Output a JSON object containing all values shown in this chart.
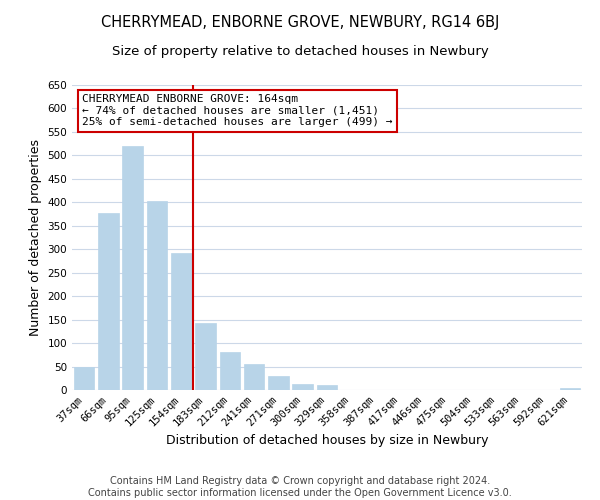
{
  "title": "CHERRYMEAD, ENBORNE GROVE, NEWBURY, RG14 6BJ",
  "subtitle": "Size of property relative to detached houses in Newbury",
  "xlabel": "Distribution of detached houses by size in Newbury",
  "ylabel": "Number of detached properties",
  "bar_labels": [
    "37sqm",
    "66sqm",
    "95sqm",
    "125sqm",
    "154sqm",
    "183sqm",
    "212sqm",
    "241sqm",
    "271sqm",
    "300sqm",
    "329sqm",
    "358sqm",
    "387sqm",
    "417sqm",
    "446sqm",
    "475sqm",
    "504sqm",
    "533sqm",
    "563sqm",
    "592sqm",
    "621sqm"
  ],
  "bar_values": [
    50,
    378,
    520,
    403,
    293,
    143,
    80,
    55,
    30,
    13,
    10,
    0,
    0,
    0,
    0,
    0,
    0,
    0,
    0,
    0,
    5
  ],
  "bar_color": "#b8d4e8",
  "bar_edge_color": "#b8d4e8",
  "ylim": [
    0,
    650
  ],
  "yticks": [
    0,
    50,
    100,
    150,
    200,
    250,
    300,
    350,
    400,
    450,
    500,
    550,
    600,
    650
  ],
  "vline_x": 4.5,
  "vline_color": "#cc0000",
  "annotation_title": "CHERRYMEAD ENBORNE GROVE: 164sqm",
  "annotation_line1": "← 74% of detached houses are smaller (1,451)",
  "annotation_line2": "25% of semi-detached houses are larger (499) →",
  "annotation_box_color": "#ffffff",
  "annotation_box_edge": "#cc0000",
  "footer1": "Contains HM Land Registry data © Crown copyright and database right 2024.",
  "footer2": "Contains public sector information licensed under the Open Government Licence v3.0.",
  "bg_color": "#ffffff",
  "grid_color": "#ccd8e8",
  "title_fontsize": 10.5,
  "subtitle_fontsize": 9.5,
  "axis_label_fontsize": 9,
  "tick_fontsize": 7.5,
  "annotation_fontsize": 8,
  "footer_fontsize": 7
}
